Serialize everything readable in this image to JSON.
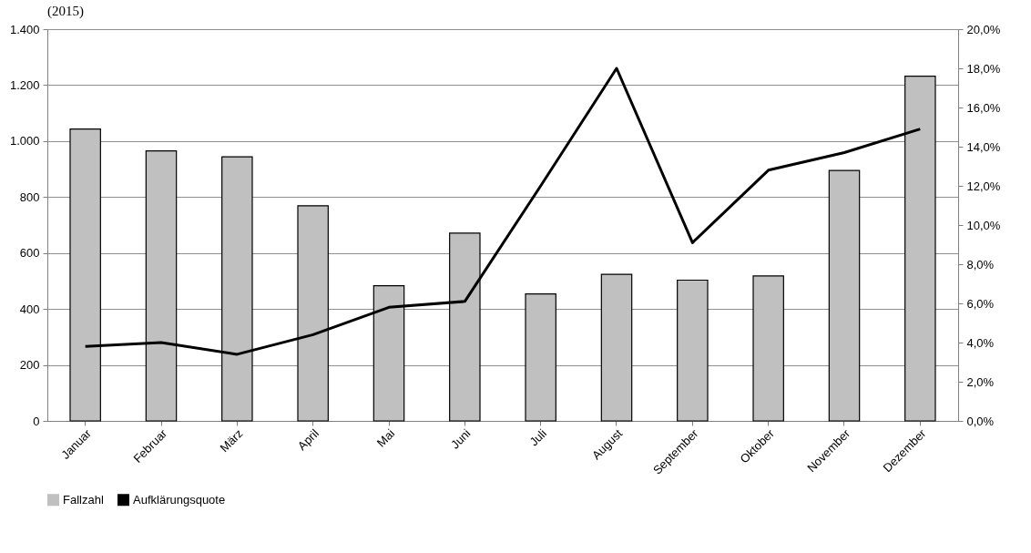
{
  "chart_data": {
    "type": "bar",
    "title": "(2015)",
    "categories": [
      "Januar",
      "Februar",
      "März",
      "April",
      "Mai",
      "Juni",
      "Juli",
      "August",
      "September",
      "Oktober",
      "November",
      "Dezember"
    ],
    "series": [
      {
        "name": "Fallzahl",
        "color": "#c0c0c0",
        "values": [
          1043,
          965,
          944,
          769,
          483,
          671,
          454,
          524,
          503,
          518,
          895,
          1232
        ]
      },
      {
        "name": "Aufklärungsquote",
        "type": "line",
        "axis": "y2",
        "color": "#000000",
        "values": [
          3.8,
          4.0,
          3.4,
          4.4,
          5.8,
          6.1,
          12.0,
          18.0,
          9.1,
          12.8,
          13.7,
          14.9
        ]
      }
    ],
    "ylim": [
      0,
      1400
    ],
    "yticks": [
      0,
      200,
      400,
      600,
      800,
      {
        "value": 1000,
        "label": "1.000"
      },
      {
        "value": 1200,
        "label": "1.200"
      },
      {
        "value": 1400,
        "label": "1.400"
      }
    ],
    "y2lim": [
      0,
      20
    ],
    "y2ticks": [
      {
        "value": 0,
        "label": "0,0%"
      },
      {
        "value": 2,
        "label": "2,0%"
      },
      {
        "value": 4,
        "label": "4,0%"
      },
      {
        "value": 6,
        "label": "6,0%"
      },
      {
        "value": 8,
        "label": "8,0%"
      },
      {
        "value": 10,
        "label": "10,0%"
      },
      {
        "value": 12,
        "label": "12,0%"
      },
      {
        "value": 14,
        "label": "14,0%"
      },
      {
        "value": 16,
        "label": "16,0%"
      },
      {
        "value": 18,
        "label": "18,0%"
      },
      {
        "value": 20,
        "label": "20,0%"
      }
    ],
    "grid": "y",
    "legend": "bottom",
    "marker": "none",
    "line_style": "solid"
  }
}
